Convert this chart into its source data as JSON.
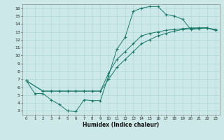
{
  "bg_color": "#cce8e8",
  "line_color": "#1a7a6a",
  "grid_color": "#aad4d4",
  "xlim": [
    -0.5,
    23.5
  ],
  "ylim": [
    2.5,
    16.5
  ],
  "xticks": [
    0,
    1,
    2,
    3,
    4,
    5,
    6,
    7,
    8,
    9,
    10,
    11,
    12,
    13,
    14,
    15,
    16,
    17,
    18,
    19,
    20,
    21,
    22,
    23
  ],
  "yticks": [
    3,
    4,
    5,
    6,
    7,
    8,
    9,
    10,
    11,
    12,
    13,
    14,
    15,
    16
  ],
  "xlabel": "Humidex (Indice chaleur)",
  "curve1_x": [
    0,
    1,
    2,
    3,
    4,
    5,
    6,
    7,
    8,
    9,
    10,
    11,
    12,
    13,
    14,
    15,
    16,
    17,
    18,
    19,
    20,
    21,
    22,
    23
  ],
  "curve1_y": [
    6.8,
    5.2,
    5.2,
    4.4,
    3.8,
    3.0,
    2.9,
    4.4,
    4.3,
    4.3,
    7.5,
    10.8,
    12.3,
    15.6,
    16.0,
    16.2,
    16.2,
    15.2,
    15.0,
    14.6,
    13.3,
    13.4,
    13.5,
    13.2
  ],
  "curve2_x": [
    0,
    2,
    3,
    4,
    5,
    6,
    7,
    8,
    9,
    10,
    11,
    12,
    13,
    14,
    15,
    16,
    17,
    18,
    19,
    20,
    21,
    22,
    23
  ],
  "curve2_y": [
    6.8,
    5.5,
    5.5,
    5.5,
    5.5,
    5.5,
    5.5,
    5.5,
    5.5,
    7.0,
    8.5,
    9.5,
    10.5,
    11.5,
    12.0,
    12.5,
    12.8,
    13.1,
    13.3,
    13.4,
    13.5,
    13.5,
    13.2
  ],
  "curve3_x": [
    0,
    2,
    3,
    4,
    5,
    6,
    7,
    8,
    9,
    10,
    11,
    12,
    13,
    14,
    15,
    16,
    17,
    18,
    19,
    20,
    21,
    22,
    23
  ],
  "curve3_y": [
    6.8,
    5.5,
    5.5,
    5.5,
    5.5,
    5.5,
    5.5,
    5.5,
    5.5,
    7.8,
    9.5,
    10.5,
    11.5,
    12.5,
    12.8,
    13.0,
    13.2,
    13.3,
    13.4,
    13.5,
    13.5,
    13.5,
    13.3
  ]
}
